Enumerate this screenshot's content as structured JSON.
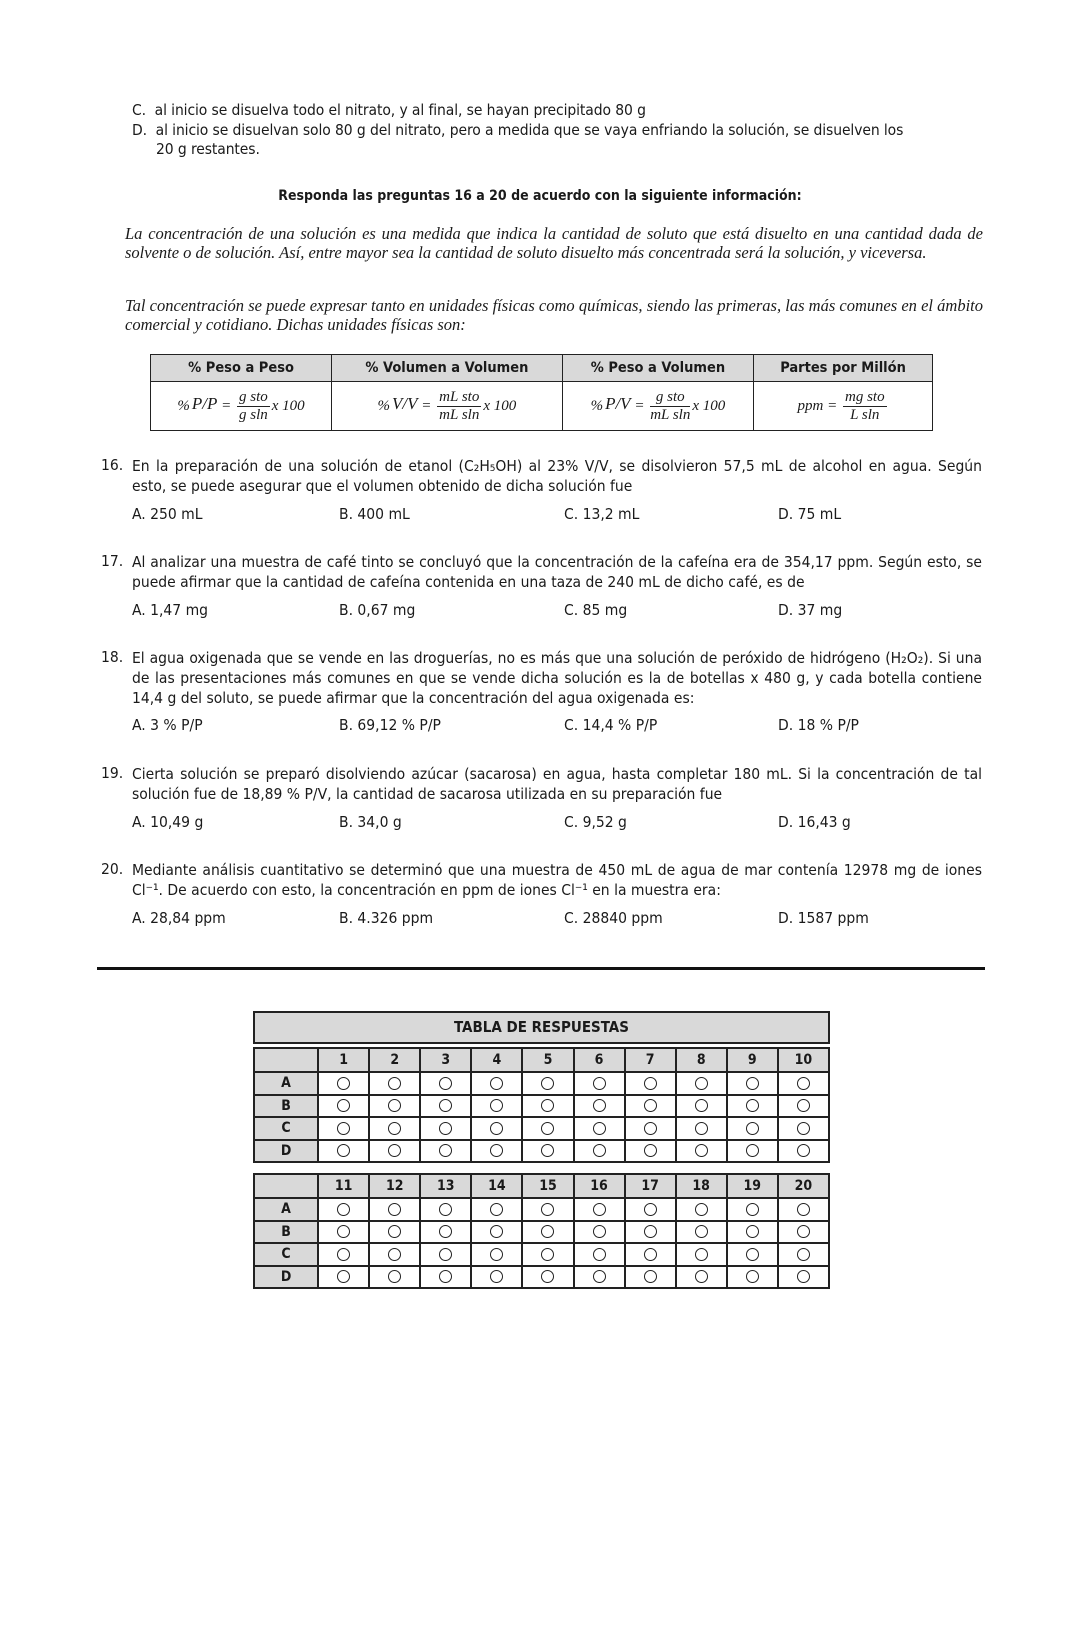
{
  "prev_options": {
    "C": "al inicio se disuelva todo el nitrato, y al final, se hayan precipitado 80 g",
    "D_line1": "al inicio se disuelvan solo 80 g del nitrato, pero a medida que se vaya enfriando la solución, se disuelven los",
    "D_line2": "20 g restantes."
  },
  "section_heading": "Responda las preguntas 16 a 20 de acuerdo con la siguiente información:",
  "paragraphs": [
    "La concentración de una solución es una medida que indica la cantidad de soluto que está disuelto en una cantidad dada de solvente o de solución.  Así, entre mayor sea la cantidad de soluto disuelto más concentrada será la solución, y viceversa.",
    "Tal concentración se puede expresar tanto en unidades físicas como químicas, siendo las primeras, las más comunes en el ámbito comercial y cotidiano.  Dichas unidades físicas son:"
  ],
  "formula_table": {
    "headers": [
      "% Peso a Peso",
      "% Volumen a Volumen",
      "% Peso a Volumen",
      "Partes por Millón"
    ],
    "formulas": [
      {
        "lhs": "%",
        "ratio": "P/P",
        "num": "g sto",
        "den": "g sln",
        "tail": "x 100"
      },
      {
        "lhs": "%",
        "ratio": "V/V",
        "num": "mL sto",
        "den": "mL sln",
        "tail": "x 100"
      },
      {
        "lhs": "%",
        "ratio": "P/V",
        "num": "g sto",
        "den": "mL sln",
        "tail": "x 100"
      },
      {
        "lhs": "ppm",
        "ratio": "",
        "num": "mg sto",
        "den": "L sln",
        "tail": ""
      }
    ]
  },
  "questions": [
    {
      "number": "16.",
      "text": "En la preparación de una solución de etanol (C₂H₅OH) al 23% V/V, se disolvieron 57,5 mL de alcohol en agua. Según esto, se puede asegurar que el volumen obtenido de dicha solución fue",
      "options": [
        "A.  250 mL",
        "B.  400 mL",
        "C.  13,2 mL",
        "D.  75 mL"
      ]
    },
    {
      "number": "17.",
      "text": "Al analizar una muestra de café tinto se concluyó que la concentración de la cafeína era de 354,17 ppm.  Según esto, se puede afirmar que la cantidad de cafeína contenida en una taza de 240 mL de dicho café, es de",
      "options": [
        "A.  1,47 mg",
        "B.  0,67 mg",
        "C.  85 mg",
        "D.  37 mg"
      ]
    },
    {
      "number": "18.",
      "text": "El agua oxigenada que se vende en las droguerías, no es más que una solución de peróxido de hidrógeno (H₂O₂). Si una de las presentaciones más comunes en que se vende dicha solución es la de botellas x 480 g, y cada botella contiene 14,4 g del soluto, se puede afirmar que la concentración del agua oxigenada es:",
      "options": [
        "A.  3 % P/P",
        "B.  69,12 % P/P",
        "C.  14,4 % P/P",
        "D.  18 % P/P"
      ]
    },
    {
      "number": "19.",
      "text": "Cierta solución se preparó disolviendo azúcar (sacarosa) en agua, hasta completar 180 mL.  Si la concentración de tal solución fue de 18,89 % P/V, la cantidad de sacarosa utilizada en su preparación fue",
      "options": [
        "A.  10,49 g",
        "B.  34,0 g",
        "C.  9,52 g",
        "D.  16,43 g"
      ]
    },
    {
      "number": "20.",
      "text": "Mediante análisis cuantitativo se determinó que una muestra de 450 mL de agua de mar contenía 12978 mg de iones Cl⁻¹.  De acuerdo con esto, la concentración en ppm de iones Cl⁻¹ en la muestra era:",
      "options": [
        "A.  28,84 ppm",
        "B.  4.326 ppm",
        "C.  28840 ppm",
        "D.  1587 ppm"
      ]
    }
  ],
  "answer_table": {
    "title": "TABLA DE RESPUESTAS",
    "rows": [
      "A",
      "B",
      "C",
      "D"
    ],
    "blocks": [
      [
        "1",
        "2",
        "3",
        "4",
        "5",
        "6",
        "7",
        "8",
        "9",
        "10"
      ],
      [
        "11",
        "12",
        "13",
        "14",
        "15",
        "16",
        "17",
        "18",
        "19",
        "20"
      ]
    ],
    "bubble_icon": "empty-circle"
  }
}
